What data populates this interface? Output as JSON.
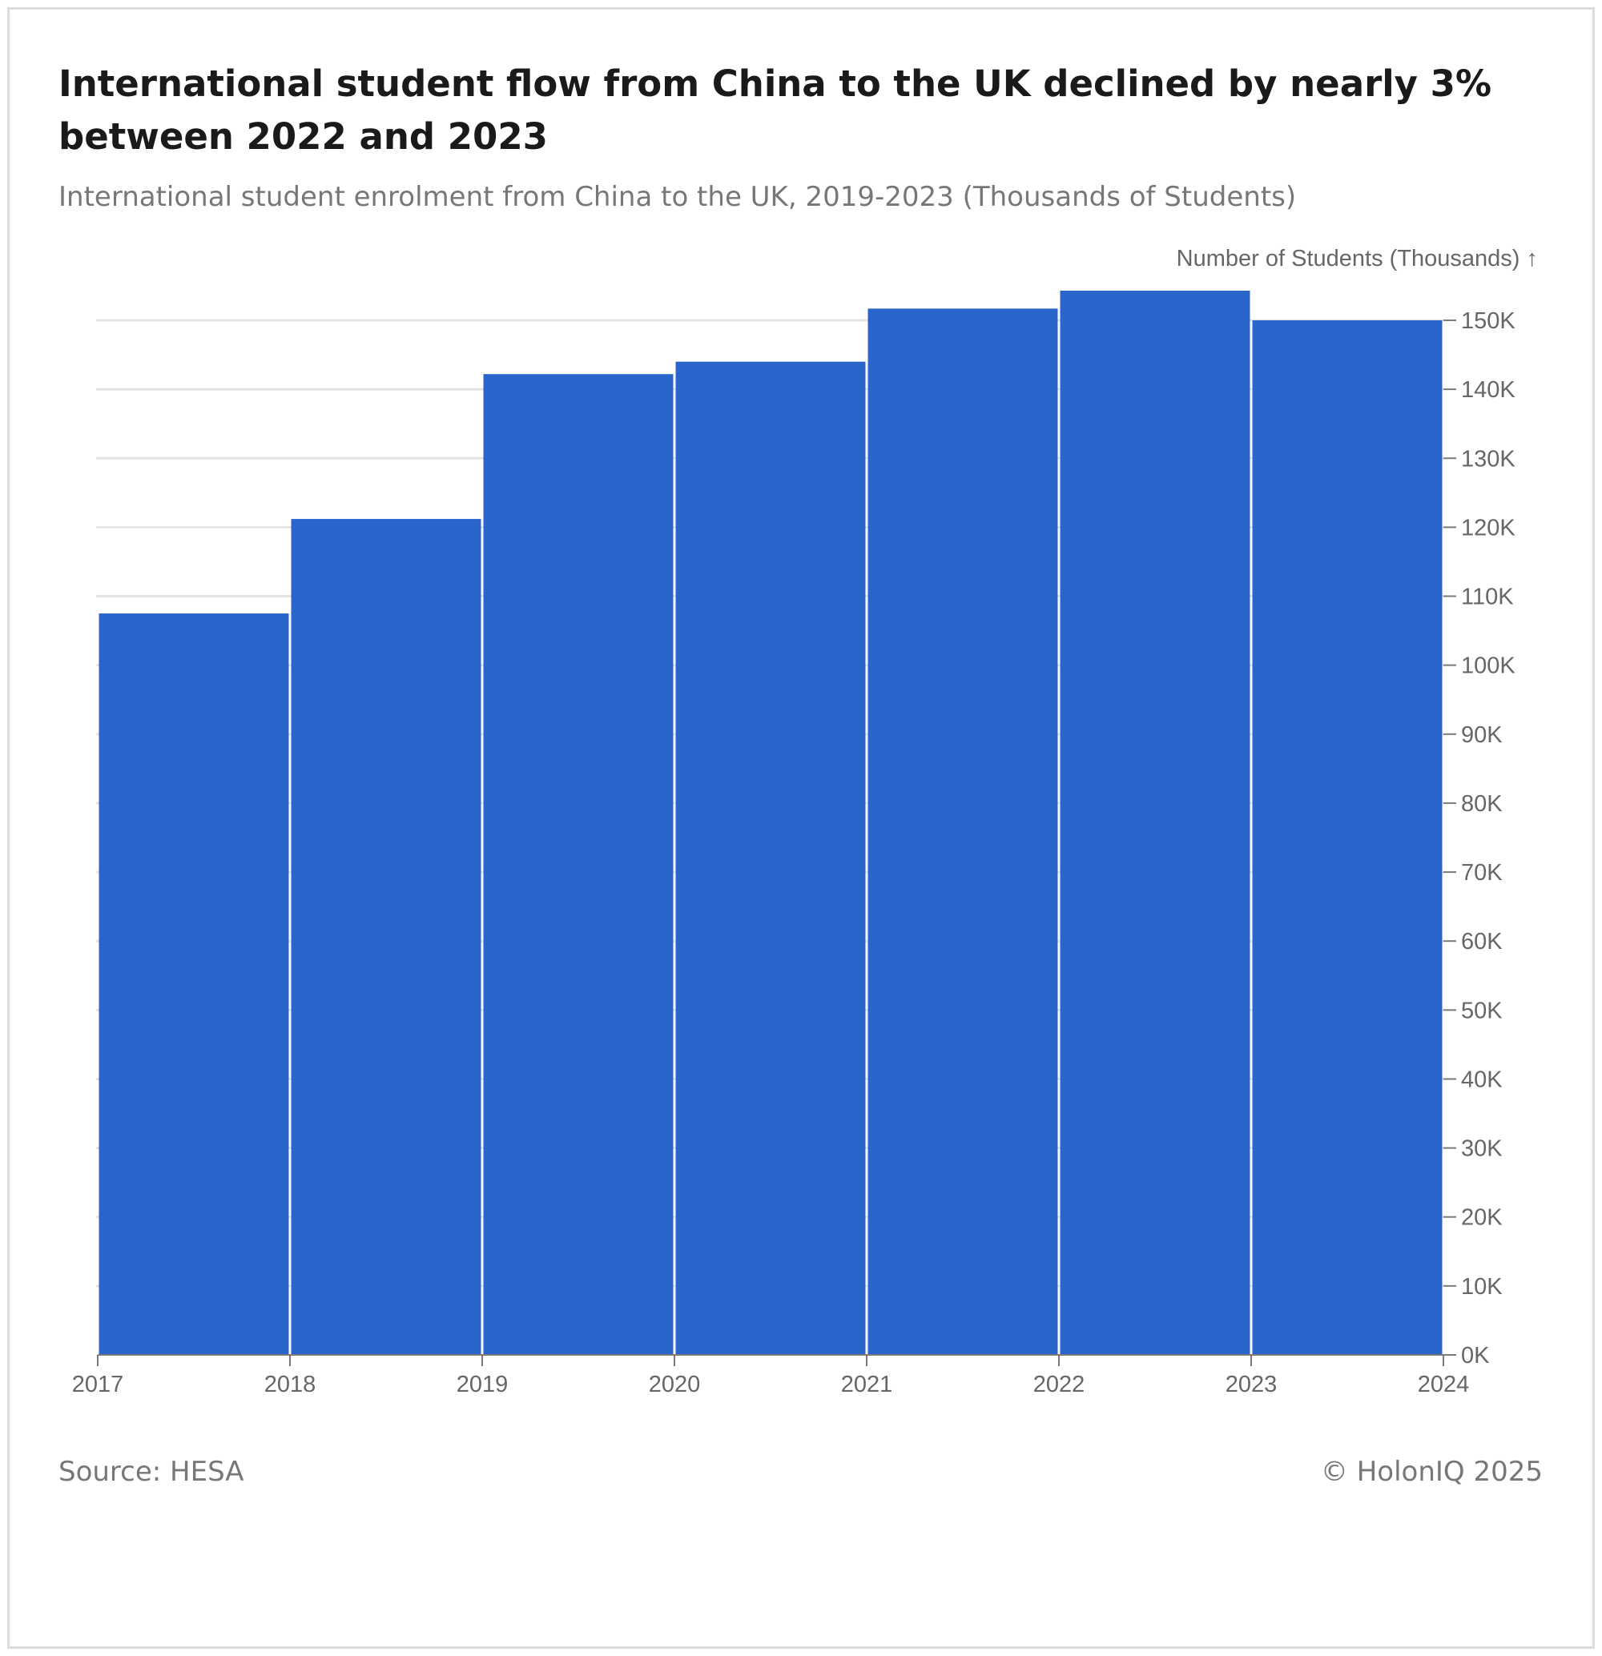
{
  "title": "International student flow from China to the UK declined by nearly 3% between 2022 and 2023",
  "subtitle": "International student enrolment from China to the UK, 2019-2023 (Thousands of Students)",
  "source": "Source: HESA",
  "copyright": "© HolonIQ 2025",
  "chart_data": {
    "type": "bar",
    "bins": [
      {
        "start": 2017,
        "end": 2018,
        "value": 107.5
      },
      {
        "start": 2018,
        "end": 2019,
        "value": 121.2
      },
      {
        "start": 2019,
        "end": 2020,
        "value": 142.2
      },
      {
        "start": 2020,
        "end": 2021,
        "value": 144.0
      },
      {
        "start": 2021,
        "end": 2022,
        "value": 151.7
      },
      {
        "start": 2022,
        "end": 2023,
        "value": 154.3
      },
      {
        "start": 2023,
        "end": 2024,
        "value": 150.0
      }
    ],
    "x_ticks": [
      "2017",
      "2018",
      "2019",
      "2020",
      "2021",
      "2022",
      "2023",
      "2024"
    ],
    "xlim": [
      2017,
      2024
    ],
    "ylim": [
      0,
      150
    ],
    "y_ticks": [
      0,
      10,
      20,
      30,
      40,
      50,
      60,
      70,
      80,
      90,
      100,
      110,
      120,
      130,
      140,
      150
    ],
    "y_tick_labels": [
      "0K",
      "10K",
      "20K",
      "30K",
      "40K",
      "50K",
      "60K",
      "70K",
      "80K",
      "90K",
      "100K",
      "110K",
      "120K",
      "130K",
      "140K",
      "150K"
    ],
    "ylabel": "Number of Students (Thousands) ↑",
    "y_axis_position": "right",
    "grid": true,
    "colors": {
      "bar": "#2a65cc",
      "grid": "#e4e4e4",
      "axis": "#7a7a7a",
      "tick_text": "#666666"
    }
  }
}
